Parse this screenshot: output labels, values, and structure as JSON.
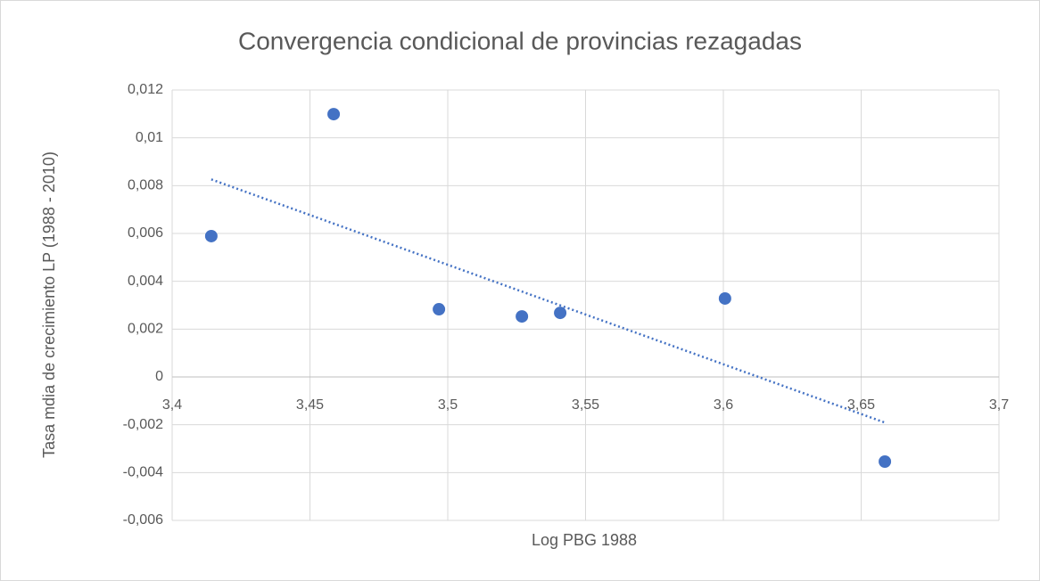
{
  "chart_data": {
    "type": "scatter",
    "title": "Convergencia condicional de provincias rezagadas",
    "x_label": "Log PBG 1988",
    "y_label": "Tasa mdia de crecimiento LP (1988 - 2010)",
    "series": [
      {
        "color": "#4472c4",
        "x": [
          3.4142,
          3.4586,
          3.4968,
          3.5269,
          3.5408,
          3.6006,
          3.6586
        ],
        "values": [
          0.00589,
          0.01099,
          0.00283,
          0.00253,
          0.00268,
          0.00328,
          -0.00354
        ]
      }
    ],
    "trendline": "linear",
    "trendline_style": "dotted",
    "xlim": [
      3.4,
      3.7
    ],
    "xticks": [
      {
        "value": 3.4,
        "label": "3,4"
      },
      {
        "value": 3.45,
        "label": "3,45"
      },
      {
        "value": 3.5,
        "label": "3,5"
      },
      {
        "value": 3.55,
        "label": "3,55"
      },
      {
        "value": 3.6,
        "label": "3,6"
      },
      {
        "value": 3.65,
        "label": "3,65"
      },
      {
        "value": 3.7,
        "label": "3,7"
      }
    ],
    "ylim": [
      -0.006,
      0.012
    ],
    "yticks": [
      {
        "value": -0.006,
        "label": "-0,006"
      },
      {
        "value": -0.004,
        "label": "-0,004"
      },
      {
        "value": -0.002,
        "label": "-0,002"
      },
      0,
      {
        "value": 0.002,
        "label": "0,002"
      },
      {
        "value": 0.004,
        "label": "0,004"
      },
      {
        "value": 0.006,
        "label": "0,006"
      },
      {
        "value": 0.008,
        "label": "0,008"
      },
      {
        "value": 0.01,
        "label": "0,01"
      },
      {
        "value": 0.012,
        "label": "0,012"
      }
    ],
    "grid": true
  }
}
